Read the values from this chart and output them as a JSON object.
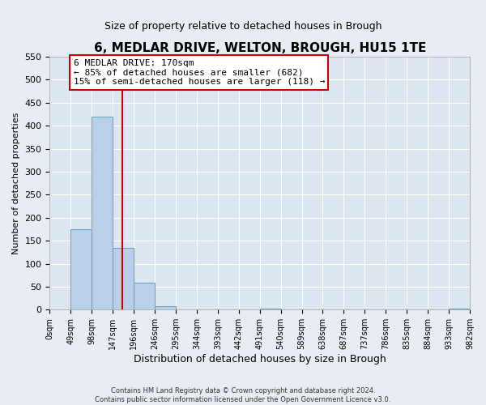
{
  "title": "6, MEDLAR DRIVE, WELTON, BROUGH, HU15 1TE",
  "subtitle": "Size of property relative to detached houses in Brough",
  "xlabel": "Distribution of detached houses by size in Brough",
  "ylabel": "Number of detached properties",
  "bin_edges": [
    0,
    49,
    98,
    147,
    196,
    245,
    294,
    343,
    392,
    441,
    490,
    539,
    588,
    637,
    686,
    735,
    784,
    833,
    882,
    931,
    980
  ],
  "bin_labels": [
    "0sqm",
    "49sqm",
    "98sqm",
    "147sqm",
    "196sqm",
    "246sqm",
    "295sqm",
    "344sqm",
    "393sqm",
    "442sqm",
    "491sqm",
    "540sqm",
    "589sqm",
    "638sqm",
    "687sqm",
    "737sqm",
    "786sqm",
    "835sqm",
    "884sqm",
    "933sqm",
    "982sqm"
  ],
  "counts": [
    0,
    175,
    420,
    135,
    58,
    7,
    0,
    0,
    0,
    0,
    2,
    0,
    0,
    0,
    0,
    0,
    0,
    0,
    0,
    2
  ],
  "bar_color": "#b8d0e8",
  "bar_edge_color": "#6a9fc0",
  "vline_x": 170,
  "vline_color": "#cc0000",
  "annotation_text": "6 MEDLAR DRIVE: 170sqm\n← 85% of detached houses are smaller (682)\n15% of semi-detached houses are larger (118) →",
  "annotation_box_color": "white",
  "annotation_box_edge": "#cc0000",
  "ylim": [
    0,
    550
  ],
  "yticks": [
    0,
    50,
    100,
    150,
    200,
    250,
    300,
    350,
    400,
    450,
    500,
    550
  ],
  "footer1": "Contains HM Land Registry data © Crown copyright and database right 2024.",
  "footer2": "Contains public sector information licensed under the Open Government Licence v3.0.",
  "background_color": "#e8edf4",
  "plot_bg_color": "#dce6f0"
}
